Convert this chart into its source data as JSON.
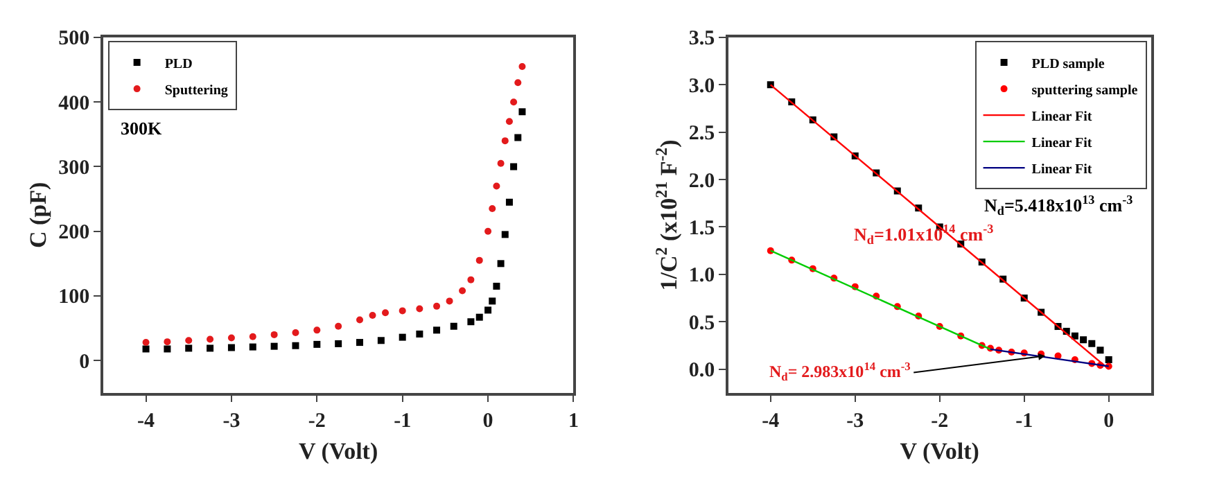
{
  "chart_data": [
    {
      "type": "scatter",
      "xlabel": "V (Volt)",
      "ylabel": "C (pF)",
      "xlim": [
        -4.5,
        1
      ],
      "xticks": [
        -4,
        -3,
        -2,
        -1,
        0,
        1
      ],
      "ylim": [
        -50,
        500
      ],
      "yticks": [
        0,
        100,
        200,
        300,
        400,
        500
      ],
      "legend": "top left",
      "annotations": [
        "300K"
      ],
      "series": [
        {
          "name": "PLD",
          "color": "#000000",
          "marker": "square",
          "x": [
            -4,
            -3.75,
            -3.5,
            -3.25,
            -3,
            -2.75,
            -2.5,
            -2.25,
            -2,
            -1.75,
            -1.5,
            -1.25,
            -1,
            -0.8,
            -0.6,
            -0.4,
            -0.2,
            -0.1,
            0,
            0.05,
            0.1,
            0.15,
            0.2,
            0.25,
            0.3,
            0.35,
            0.4
          ],
          "values": [
            18,
            18,
            19,
            19,
            20,
            21,
            22,
            23,
            25,
            26,
            28,
            31,
            36,
            41,
            47,
            53,
            60,
            67,
            78,
            92,
            115,
            150,
            195,
            245,
            300,
            345,
            385
          ]
        },
        {
          "name": "Sputtering",
          "color": "#e31a1c",
          "marker": "circle",
          "x": [
            -4,
            -3.75,
            -3.5,
            -3.25,
            -3,
            -2.75,
            -2.5,
            -2.25,
            -2,
            -1.75,
            -1.5,
            -1.35,
            -1.2,
            -1,
            -0.8,
            -0.6,
            -0.45,
            -0.3,
            -0.2,
            -0.1,
            0,
            0.05,
            0.1,
            0.15,
            0.2,
            0.25,
            0.3,
            0.35,
            0.4
          ],
          "values": [
            28,
            29,
            31,
            33,
            35,
            37,
            40,
            43,
            47,
            53,
            63,
            70,
            74,
            77,
            80,
            84,
            92,
            108,
            125,
            155,
            200,
            235,
            270,
            305,
            340,
            370,
            400,
            430,
            455
          ]
        }
      ]
    },
    {
      "type": "scatter",
      "xlabel": "V (Volt)",
      "ylabel": "1/C$^{2}$ (x10$^{21}$ F$^{-2}$)",
      "xlim": [
        -4.5,
        0.5
      ],
      "xticks": [
        -4,
        -3,
        -2,
        -1,
        0
      ],
      "ylim": [
        -0.25,
        3.5
      ],
      "yticks": [
        {
          "value": 0,
          "label": "0.0"
        },
        {
          "value": 0.5,
          "label": "0.5"
        },
        {
          "value": 1,
          "label": "1.0"
        },
        {
          "value": 1.5,
          "label": "1.5"
        },
        {
          "value": 2,
          "label": "2.0"
        },
        {
          "value": 2.5,
          "label": "2.5"
        },
        {
          "value": 3,
          "label": "3.0"
        },
        {
          "value": 3.5,
          "label": "3.5"
        }
      ],
      "legend": "top right",
      "annotations": [
        "N$_{d}$=5.418x10$^{13}$ cm$^{-3}$",
        "N$_{d}$=1.01x10$^{14}$ cm$^{-3}$",
        {
          "text": "N$_{d}$= 2.983x10$^{14}$ cm$^{-3}$",
          "x": -0.75,
          "y": 0.14
        }
      ],
      "series": [
        {
          "name": "PLD sample",
          "color": "#000000",
          "marker": "square",
          "x": [
            -4,
            -3.75,
            -3.5,
            -3.25,
            -3,
            -2.75,
            -2.5,
            -2.25,
            -2,
            -1.75,
            -1.5,
            -1.25,
            -1,
            -0.8,
            -0.6,
            -0.5,
            -0.4,
            -0.3,
            -0.2,
            -0.1,
            0
          ],
          "values": [
            3.0,
            2.82,
            2.63,
            2.45,
            2.25,
            2.07,
            1.88,
            1.7,
            1.5,
            1.32,
            1.13,
            0.95,
            0.75,
            0.6,
            0.45,
            0.4,
            0.35,
            0.31,
            0.27,
            0.2,
            0.1
          ]
        },
        {
          "name": "sputtering sample",
          "color": "#ff0000",
          "marker": "circle",
          "x": [
            -4,
            -3.75,
            -3.5,
            -3.25,
            -3,
            -2.75,
            -2.5,
            -2.25,
            -2,
            -1.75,
            -1.5,
            -1.4,
            -1.3,
            -1.15,
            -1,
            -0.8,
            -0.6,
            -0.4,
            -0.2,
            -0.1,
            0
          ],
          "values": [
            1.25,
            1.15,
            1.06,
            0.96,
            0.87,
            0.77,
            0.66,
            0.56,
            0.45,
            0.35,
            0.25,
            0.22,
            0.2,
            0.18,
            0.17,
            0.16,
            0.14,
            0.1,
            0.06,
            0.04,
            0.03
          ]
        },
        {
          "type": "line",
          "name": "Linear Fit",
          "color": "#ff0000",
          "x": [
            -4,
            0
          ],
          "values": [
            3.0,
            0.0
          ]
        },
        {
          "type": "line",
          "name": "Linear Fit",
          "color": "#00cc00",
          "x": [
            -4,
            -1.4
          ],
          "values": [
            1.25,
            0.21
          ]
        },
        {
          "type": "line",
          "name": "Linear Fit",
          "color": "#000080",
          "x": [
            -1.4,
            0
          ],
          "values": [
            0.21,
            0.03
          ]
        }
      ]
    }
  ]
}
